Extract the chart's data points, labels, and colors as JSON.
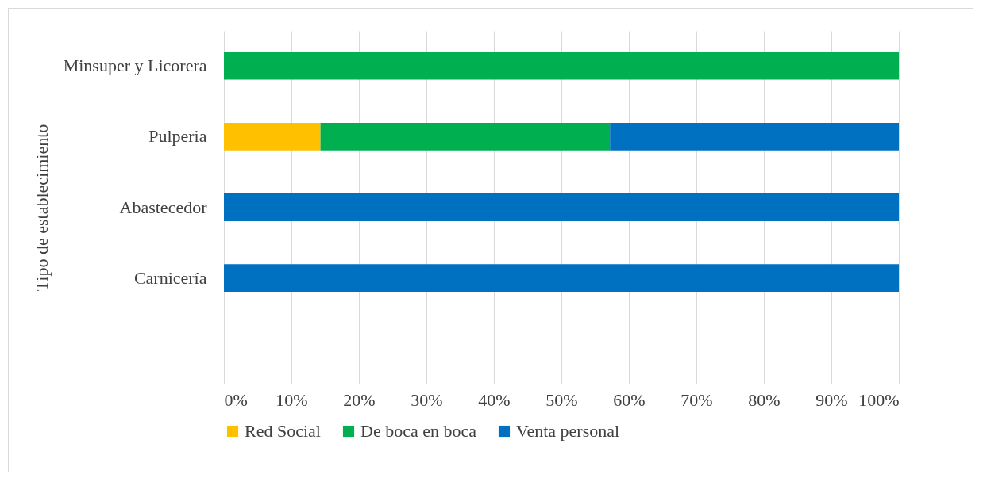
{
  "chart_data": {
    "type": "bar",
    "orientation": "horizontal",
    "stacked": true,
    "ylabel": "Tipo de establecimiento",
    "categories": [
      "Minsuper y Licorera",
      "Pulperia",
      "Abastecedor",
      "Carnicería",
      null
    ],
    "series": [
      {
        "name": "Red Social",
        "color": "#ffc000",
        "values": [
          null,
          14.3,
          null,
          null,
          null
        ]
      },
      {
        "name": "De boca en boca",
        "color": "#00b050",
        "values": [
          100,
          42.9,
          null,
          null,
          null
        ]
      },
      {
        "name": "Venta personal",
        "color": "#0070c0",
        "values": [
          null,
          42.8,
          100,
          100,
          null
        ]
      }
    ],
    "xlim": [
      0,
      100
    ],
    "xticks": [
      {
        "value": 0,
        "label": "0%"
      },
      {
        "value": 10,
        "label": "10%"
      },
      {
        "value": 20,
        "label": "20%"
      },
      {
        "value": 30,
        "label": "30%"
      },
      {
        "value": 40,
        "label": "40%"
      },
      {
        "value": 50,
        "label": "50%"
      },
      {
        "value": 60,
        "label": "60%"
      },
      {
        "value": 70,
        "label": "70%"
      },
      {
        "value": 80,
        "label": "80%"
      },
      {
        "value": 90,
        "label": "90%"
      },
      {
        "value": 100,
        "label": "100%"
      }
    ],
    "grid": "x",
    "legend": "bottom"
  }
}
